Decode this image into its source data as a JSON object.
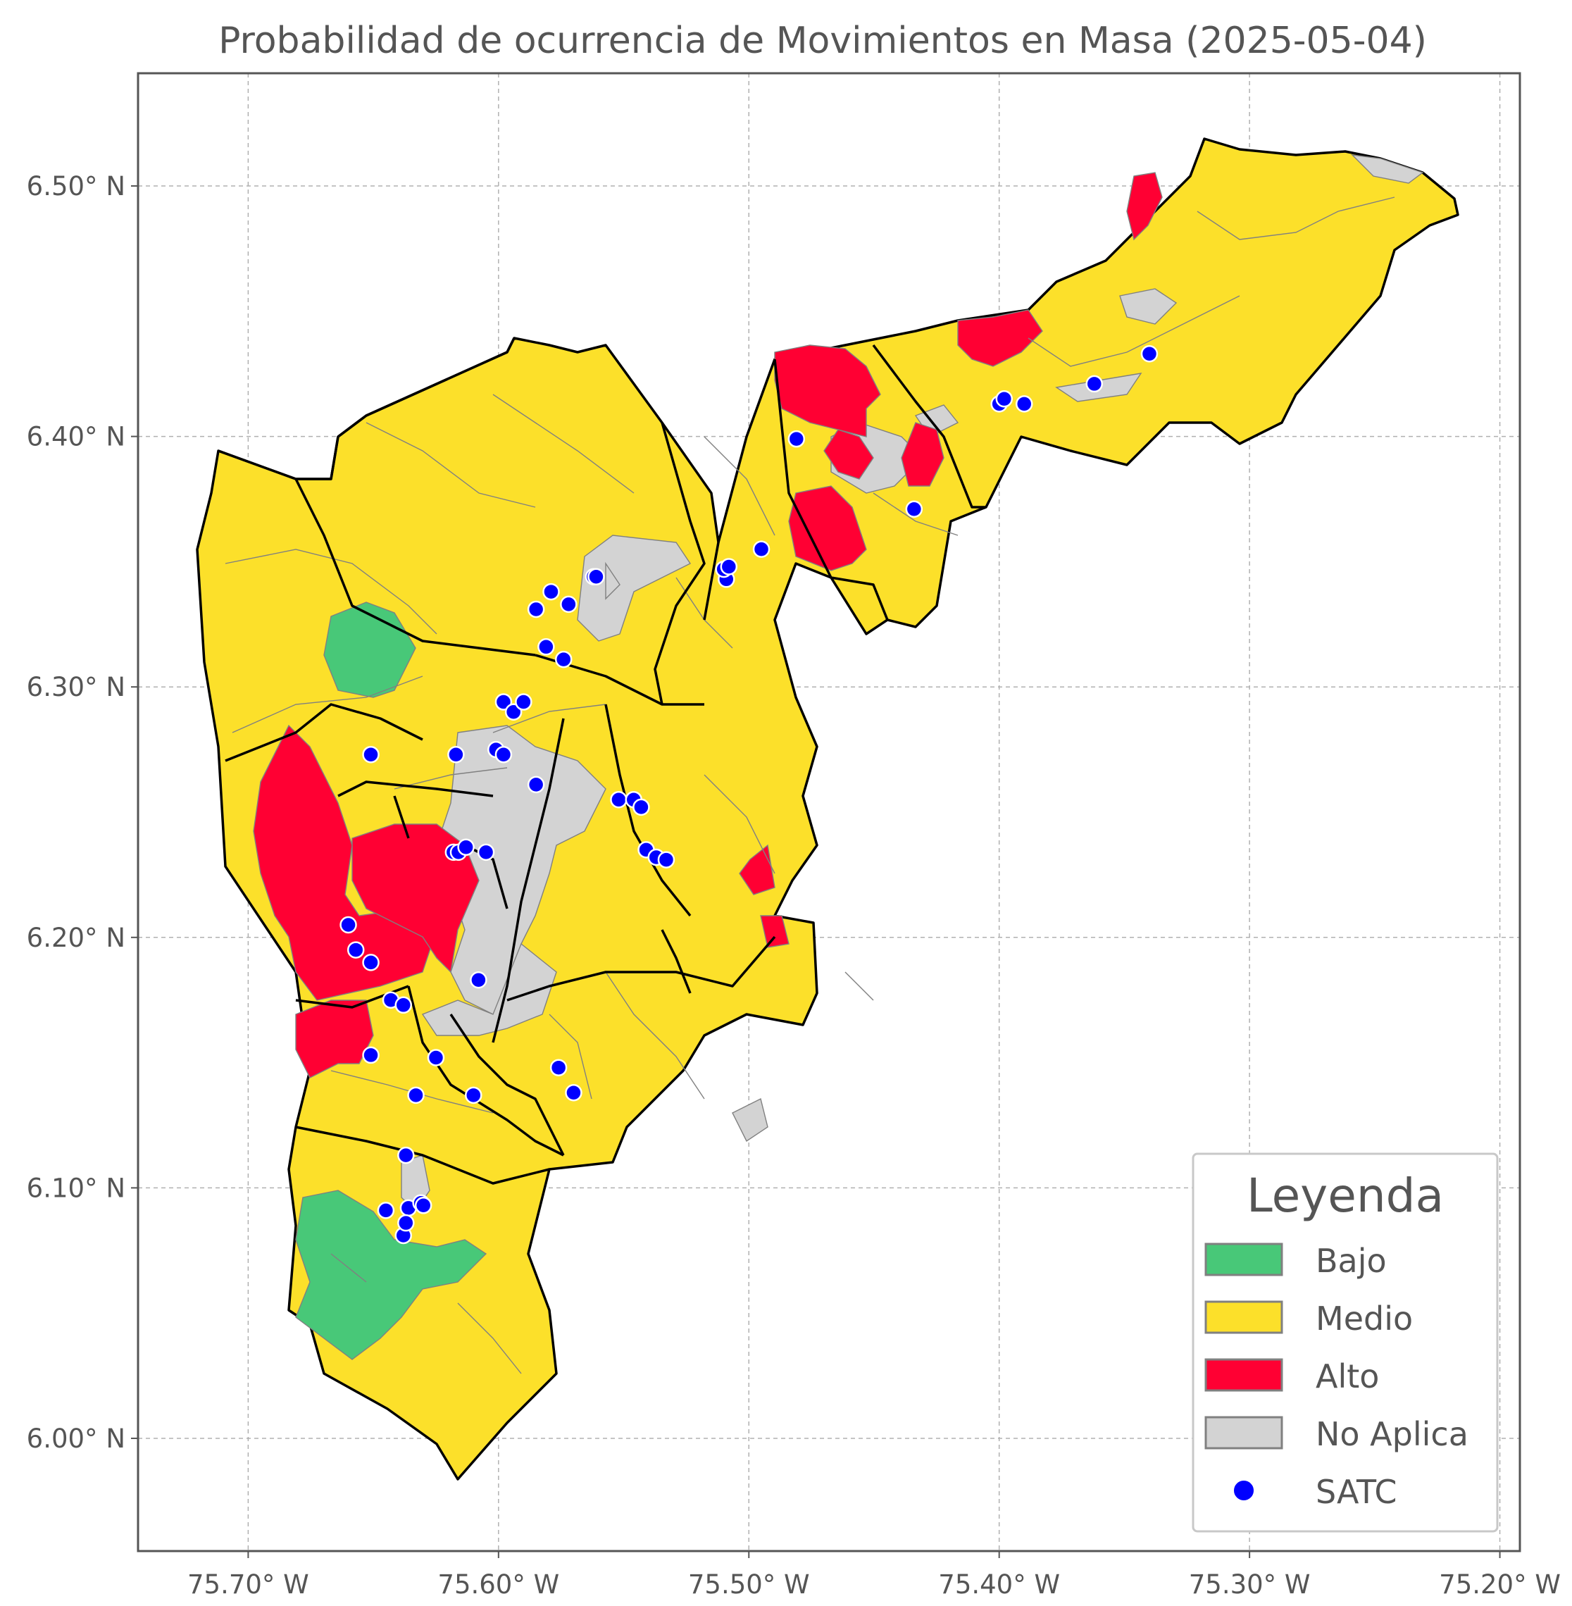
{
  "title": "Probabilidad de ocurrencia de Movimientos en Masa (2025-05-04)",
  "x_ticks": [
    {
      "value": -75.7,
      "label": "75.70° W"
    },
    {
      "value": -75.6,
      "label": "75.60° W"
    },
    {
      "value": -75.5,
      "label": "75.50° W"
    },
    {
      "value": -75.4,
      "label": "75.40° W"
    },
    {
      "value": -75.3,
      "label": "75.30° W"
    },
    {
      "value": -75.2,
      "label": "75.20° W"
    }
  ],
  "y_ticks": [
    {
      "value": 6.0,
      "label": "6.00° N"
    },
    {
      "value": 6.1,
      "label": "6.10° N"
    },
    {
      "value": 6.2,
      "label": "6.20° N"
    },
    {
      "value": 6.3,
      "label": "6.30° N"
    },
    {
      "value": 6.4,
      "label": "6.40° N"
    },
    {
      "value": 6.5,
      "label": "6.50° N"
    }
  ],
  "extent": {
    "lon": [
      -75.744,
      -75.192
    ],
    "lat": [
      5.955,
      6.545
    ]
  },
  "legend": {
    "title": "Leyenda",
    "items": [
      {
        "label": "Bajo",
        "color": "#48c878",
        "kind": "patch"
      },
      {
        "label": "Medio",
        "color": "#fce02a",
        "kind": "patch"
      },
      {
        "label": "Alto",
        "color": "#ff0033",
        "kind": "patch"
      },
      {
        "label": "No Aplica",
        "color": "#d3d3d3",
        "kind": "patch"
      },
      {
        "label": "SATC",
        "color": "#0000ff",
        "kind": "point"
      }
    ]
  },
  "colors": {
    "bajo": "#48c878",
    "medio": "#fce02a",
    "alto": "#ff0033",
    "no_aplica": "#d3d3d3",
    "satc": "#0000ff"
  },
  "satc_points": [
    [
      -75.66,
      6.205
    ],
    [
      -75.657,
      6.195
    ],
    [
      -75.651,
      6.19
    ],
    [
      -75.643,
      6.175
    ],
    [
      -75.638,
      6.173
    ],
    [
      -75.651,
      6.153
    ],
    [
      -75.625,
      6.152
    ],
    [
      -75.608,
      6.183
    ],
    [
      -75.618,
      6.234
    ],
    [
      -75.616,
      6.234
    ],
    [
      -75.613,
      6.236
    ],
    [
      -75.605,
      6.234
    ],
    [
      -75.633,
      6.137
    ],
    [
      -75.61,
      6.137
    ],
    [
      -75.576,
      6.148
    ],
    [
      -75.57,
      6.138
    ],
    [
      -75.637,
      6.113
    ],
    [
      -75.636,
      6.092
    ],
    [
      -75.645,
      6.091
    ],
    [
      -75.631,
      6.094
    ],
    [
      -75.63,
      6.093
    ],
    [
      -75.638,
      6.081
    ],
    [
      -75.637,
      6.086
    ],
    [
      -75.651,
      6.273
    ],
    [
      -75.617,
      6.273
    ],
    [
      -75.601,
      6.275
    ],
    [
      -75.598,
      6.273
    ],
    [
      -75.598,
      6.294
    ],
    [
      -75.594,
      6.29
    ],
    [
      -75.59,
      6.294
    ],
    [
      -75.585,
      6.261
    ],
    [
      -75.581,
      6.316
    ],
    [
      -75.574,
      6.311
    ],
    [
      -75.585,
      6.331
    ],
    [
      -75.579,
      6.338
    ],
    [
      -75.572,
      6.333
    ],
    [
      -75.562,
      6.344
    ],
    [
      -75.561,
      6.344
    ],
    [
      -75.552,
      6.255
    ],
    [
      -75.546,
      6.255
    ],
    [
      -75.543,
      6.252
    ],
    [
      -75.541,
      6.235
    ],
    [
      -75.537,
      6.232
    ],
    [
      -75.533,
      6.231
    ],
    [
      -75.509,
      6.343
    ],
    [
      -75.51,
      6.347
    ],
    [
      -75.508,
      6.348
    ],
    [
      -75.495,
      6.355
    ],
    [
      -75.481,
      6.399
    ],
    [
      -75.434,
      6.371
    ],
    [
      -75.4,
      6.413
    ],
    [
      -75.398,
      6.415
    ],
    [
      -75.39,
      6.413
    ],
    [
      -75.362,
      6.421
    ],
    [
      -75.34,
      6.433
    ]
  ]
}
